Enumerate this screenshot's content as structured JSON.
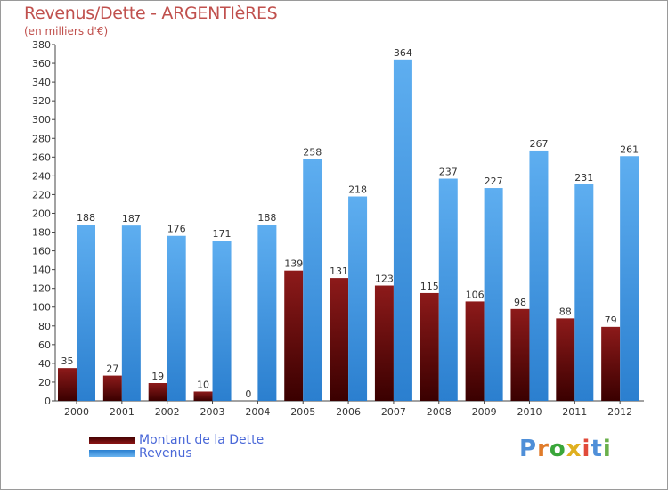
{
  "chart_data": {
    "type": "bar",
    "title": "Revenus/Dette - ARGENTIèRES",
    "subtitle": "(en milliers d'€)",
    "categories": [
      "2000",
      "2001",
      "2002",
      "2003",
      "2004",
      "2005",
      "2006",
      "2007",
      "2008",
      "2009",
      "2010",
      "2011",
      "2012"
    ],
    "series": [
      {
        "name": "Montant de la Dette",
        "color": "#8b1414",
        "values": [
          35,
          27,
          19,
          10,
          0,
          139,
          131,
          123,
          115,
          106,
          98,
          88,
          79
        ]
      },
      {
        "name": "Revenus",
        "color": "#4a9ee3",
        "values": [
          188,
          187,
          176,
          171,
          188,
          258,
          218,
          364,
          237,
          227,
          267,
          231,
          261
        ]
      }
    ],
    "ylim": [
      0,
      380
    ],
    "ytick_step": 20,
    "grid": false,
    "legend": "bottom-left"
  },
  "brand": {
    "logo_text": "Proxiti"
  }
}
